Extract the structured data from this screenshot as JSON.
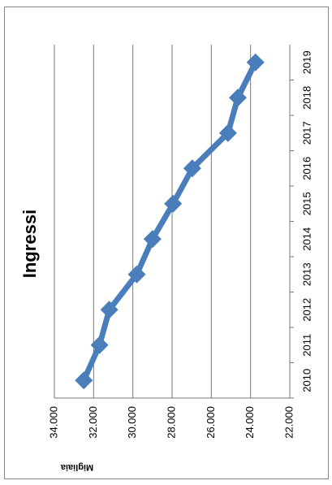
{
  "chart_data": {
    "type": "line",
    "title": "Ingressi",
    "y_axis_title": "Migliaia",
    "categories": [
      "2010",
      "2011",
      "2012",
      "2013",
      "2014",
      "2015",
      "2016",
      "2017",
      "2018",
      "2019"
    ],
    "series": [
      {
        "name": "Ingressi",
        "color": "#4a7ebb",
        "values": [
          32500,
          31700,
          31200,
          29800,
          29000,
          27950,
          26970,
          25150,
          24650,
          23750
        ]
      }
    ],
    "ylim": [
      22000,
      34000
    ],
    "yticks": [
      {
        "value": 22000,
        "label": "22.000"
      },
      {
        "value": 24000,
        "label": "24.000"
      },
      {
        "value": 26000,
        "label": "26.000"
      },
      {
        "value": 28000,
        "label": "28.000"
      },
      {
        "value": 30000,
        "label": "30.000"
      },
      {
        "value": 32000,
        "label": "32.000"
      },
      {
        "value": 34000,
        "label": "34.000"
      }
    ],
    "grid": true
  }
}
